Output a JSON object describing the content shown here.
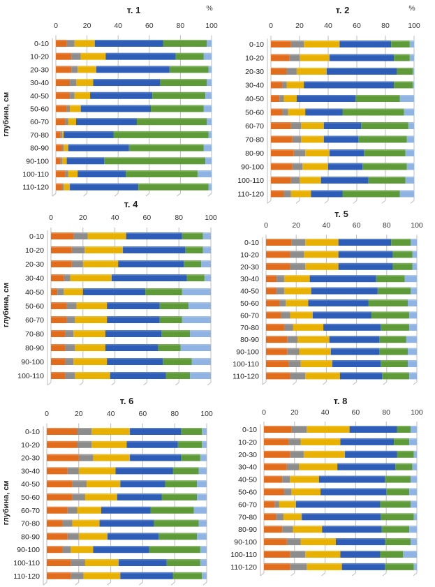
{
  "chart_data": [
    {
      "type": "bar",
      "orientation": "horizontal",
      "stacked": true,
      "title": "т. 1",
      "unit_label": "%",
      "ylabel": "глубина, см",
      "xlim": [
        0,
        100
      ],
      "xticks": [
        "0",
        "20",
        "40",
        "60",
        "80",
        "100"
      ],
      "grid": true,
      "categories": [
        "0-10",
        "10-20",
        "20-30",
        "30-40",
        "40-50",
        "50-60",
        "60-70",
        "70-80",
        "80-90",
        "90-100",
        "100-110",
        "110-120"
      ],
      "series": [
        {
          "color": "#E06C1C",
          "values": [
            7,
            10,
            10,
            9,
            9,
            7,
            6,
            3,
            4,
            3,
            6,
            4
          ]
        },
        {
          "color": "#8C8C8C",
          "values": [
            5,
            6,
            4,
            4,
            3,
            2,
            2,
            1,
            1,
            1,
            2,
            1
          ]
        },
        {
          "color": "#E8B000",
          "values": [
            13,
            16,
            12,
            11,
            10,
            7,
            5,
            1,
            3,
            3,
            6,
            4
          ]
        },
        {
          "color": "#2E5DB8",
          "values": [
            44,
            45,
            47,
            43,
            40,
            45,
            39,
            32,
            39,
            24,
            31,
            44
          ]
        },
        {
          "color": "#5E9B38",
          "values": [
            28,
            18,
            25,
            30,
            34,
            34,
            45,
            61,
            48,
            65,
            46,
            45
          ]
        },
        {
          "color": "#8FB4E3",
          "values": [
            3,
            5,
            2,
            3,
            4,
            5,
            3,
            2,
            5,
            4,
            9,
            2
          ]
        }
      ]
    },
    {
      "type": "bar",
      "orientation": "horizontal",
      "stacked": true,
      "title": "т. 2",
      "unit_label": "%",
      "ylabel": "",
      "xlim": [
        0,
        100
      ],
      "xticks": [
        "0",
        "20",
        "40",
        "60",
        "80",
        "100"
      ],
      "grid": true,
      "categories": [
        "0-10",
        "10-20",
        "20-30",
        "30-40",
        "40-50",
        "50-60",
        "60-70",
        "70-80",
        "80-90",
        "90-100",
        "100-110",
        "110-120"
      ],
      "series": [
        {
          "color": "#E06C1C",
          "values": [
            14,
            13,
            11,
            8,
            6,
            8,
            14,
            15,
            16,
            15,
            14,
            9
          ]
        },
        {
          "color": "#8C8C8C",
          "values": [
            9,
            7,
            7,
            3,
            3,
            4,
            7,
            6,
            8,
            7,
            6,
            5
          ]
        },
        {
          "color": "#E8B000",
          "values": [
            25,
            21,
            21,
            12,
            9,
            12,
            16,
            16,
            17,
            18,
            15,
            14
          ]
        },
        {
          "color": "#2E5DB8",
          "values": [
            36,
            45,
            49,
            63,
            41,
            26,
            26,
            24,
            24,
            24,
            33,
            22
          ]
        },
        {
          "color": "#5E9B38",
          "values": [
            13,
            11,
            11,
            13,
            31,
            43,
            33,
            34,
            29,
            31,
            26,
            40
          ]
        },
        {
          "color": "#8FB4E3",
          "values": [
            3,
            3,
            1,
            1,
            10,
            7,
            4,
            5,
            6,
            5,
            6,
            10
          ]
        }
      ]
    },
    {
      "type": "bar",
      "orientation": "horizontal",
      "stacked": true,
      "title": "т. 4",
      "unit_label": "",
      "ylabel": "глубина, см",
      "xlim": [
        0,
        100
      ],
      "xticks": [
        "0",
        "20",
        "40",
        "60",
        "80",
        "100"
      ],
      "grid": true,
      "categories": [
        "0-10",
        "10-20",
        "20-30",
        "30-40",
        "40-50",
        "50-60",
        "60-70",
        "70-80",
        "80-90",
        "90-100",
        "100-110"
      ],
      "series": [
        {
          "color": "#E06C1C",
          "values": [
            14,
            13,
            13,
            8,
            4,
            10,
            10,
            9,
            9,
            9,
            9
          ]
        },
        {
          "color": "#8C8C8C",
          "values": [
            9,
            8,
            7,
            4,
            4,
            6,
            5,
            5,
            6,
            5,
            6
          ]
        },
        {
          "color": "#E8B000",
          "values": [
            24,
            24,
            22,
            26,
            12,
            19,
            20,
            20,
            19,
            21,
            22
          ]
        },
        {
          "color": "#2E5DB8",
          "values": [
            35,
            39,
            41,
            47,
            39,
            33,
            33,
            35,
            33,
            35,
            35
          ]
        },
        {
          "color": "#5E9B38",
          "values": [
            13,
            11,
            11,
            11,
            23,
            18,
            14,
            18,
            14,
            18,
            15
          ]
        },
        {
          "color": "#8FB4E3",
          "values": [
            5,
            5,
            6,
            4,
            18,
            14,
            18,
            13,
            19,
            12,
            13
          ]
        }
      ]
    },
    {
      "type": "bar",
      "orientation": "horizontal",
      "stacked": true,
      "title": "т. 5",
      "unit_label": "",
      "ylabel": "",
      "xlim": [
        0,
        100
      ],
      "xticks": [
        "0",
        "20",
        "40",
        "60",
        "80",
        "100"
      ],
      "grid": true,
      "categories": [
        "0-10",
        "10-20",
        "20-30",
        "30-40",
        "40-50",
        "50-60",
        "60-70",
        "70-80",
        "80-90",
        "90-100",
        "100-110",
        "110-120"
      ],
      "series": [
        {
          "color": "#E06C1C",
          "values": [
            17,
            16,
            16,
            7,
            7,
            9,
            10,
            12,
            14,
            14,
            15,
            16
          ]
        },
        {
          "color": "#8C8C8C",
          "values": [
            9,
            9,
            10,
            5,
            5,
            4,
            6,
            6,
            7,
            8,
            8,
            10
          ]
        },
        {
          "color": "#E8B000",
          "values": [
            22,
            23,
            22,
            17,
            18,
            15,
            15,
            20,
            21,
            21,
            21,
            23
          ]
        },
        {
          "color": "#2E5DB8",
          "values": [
            35,
            36,
            36,
            44,
            44,
            40,
            39,
            38,
            33,
            32,
            32,
            28
          ]
        },
        {
          "color": "#5E9B38",
          "values": [
            13,
            13,
            13,
            19,
            22,
            26,
            25,
            19,
            18,
            19,
            18,
            18
          ]
        },
        {
          "color": "#8FB4E3",
          "values": [
            4,
            3,
            3,
            8,
            4,
            6,
            5,
            5,
            7,
            6,
            6,
            5
          ]
        }
      ]
    },
    {
      "type": "bar",
      "orientation": "horizontal",
      "stacked": true,
      "title": "т. 6",
      "unit_label": "",
      "ylabel": "глубина, см",
      "xlim": [
        0,
        100
      ],
      "xticks": [
        "0",
        "20",
        "40",
        "60",
        "80",
        "100"
      ],
      "grid": true,
      "categories": [
        "0-10",
        "10-20",
        "20-30",
        "30-40",
        "40-50",
        "50-60",
        "60-70",
        "70-80",
        "80-90",
        "90-100",
        "100-110",
        "110-120"
      ],
      "series": [
        {
          "color": "#E06C1C",
          "values": [
            19,
            19,
            20,
            13,
            16,
            16,
            13,
            10,
            13,
            10,
            15,
            15
          ]
        },
        {
          "color": "#8C8C8C",
          "values": [
            9,
            9,
            9,
            7,
            9,
            8,
            6,
            6,
            7,
            5,
            9,
            8
          ]
        },
        {
          "color": "#E8B000",
          "values": [
            24,
            22,
            23,
            23,
            21,
            20,
            15,
            17,
            18,
            14,
            21,
            23
          ]
        },
        {
          "color": "#2E5DB8",
          "values": [
            32,
            32,
            32,
            36,
            28,
            28,
            31,
            34,
            32,
            35,
            30,
            33
          ]
        },
        {
          "color": "#5E9B38",
          "values": [
            13,
            15,
            12,
            16,
            20,
            22,
            27,
            28,
            24,
            32,
            21,
            18
          ]
        },
        {
          "color": "#8FB4E3",
          "values": [
            3,
            3,
            4,
            5,
            6,
            6,
            8,
            5,
            6,
            4,
            4,
            3
          ]
        }
      ]
    },
    {
      "type": "bar",
      "orientation": "horizontal",
      "stacked": true,
      "title": "т. 8",
      "unit_label": "",
      "ylabel": "",
      "xlim": [
        0,
        100
      ],
      "xticks": [
        "0",
        "20",
        "40",
        "60",
        "80",
        "100"
      ],
      "grid": true,
      "categories": [
        "0-10",
        "10-20",
        "20-30",
        "30-40",
        "40-50",
        "50-60",
        "60-70",
        "70-80",
        "80-90",
        "90-100",
        "100-110",
        "110-120"
      ],
      "series": [
        {
          "color": "#E06C1C",
          "values": [
            18,
            16,
            17,
            15,
            12,
            13,
            7,
            8,
            12,
            15,
            17,
            17
          ]
        },
        {
          "color": "#8C8C8C",
          "values": [
            10,
            8,
            9,
            8,
            5,
            5,
            3,
            5,
            7,
            9,
            10,
            11
          ]
        },
        {
          "color": "#E8B000",
          "values": [
            28,
            26,
            27,
            25,
            19,
            19,
            11,
            12,
            19,
            23,
            23,
            23
          ]
        },
        {
          "color": "#2E5DB8",
          "values": [
            31,
            35,
            34,
            38,
            43,
            43,
            55,
            52,
            39,
            32,
            26,
            28
          ]
        },
        {
          "color": "#5E9B38",
          "values": [
            9,
            10,
            11,
            11,
            17,
            15,
            20,
            22,
            18,
            17,
            15,
            19
          ]
        },
        {
          "color": "#8FB4E3",
          "values": [
            4,
            5,
            2,
            3,
            4,
            5,
            4,
            2,
            5,
            4,
            9,
            2
          ]
        }
      ]
    }
  ]
}
